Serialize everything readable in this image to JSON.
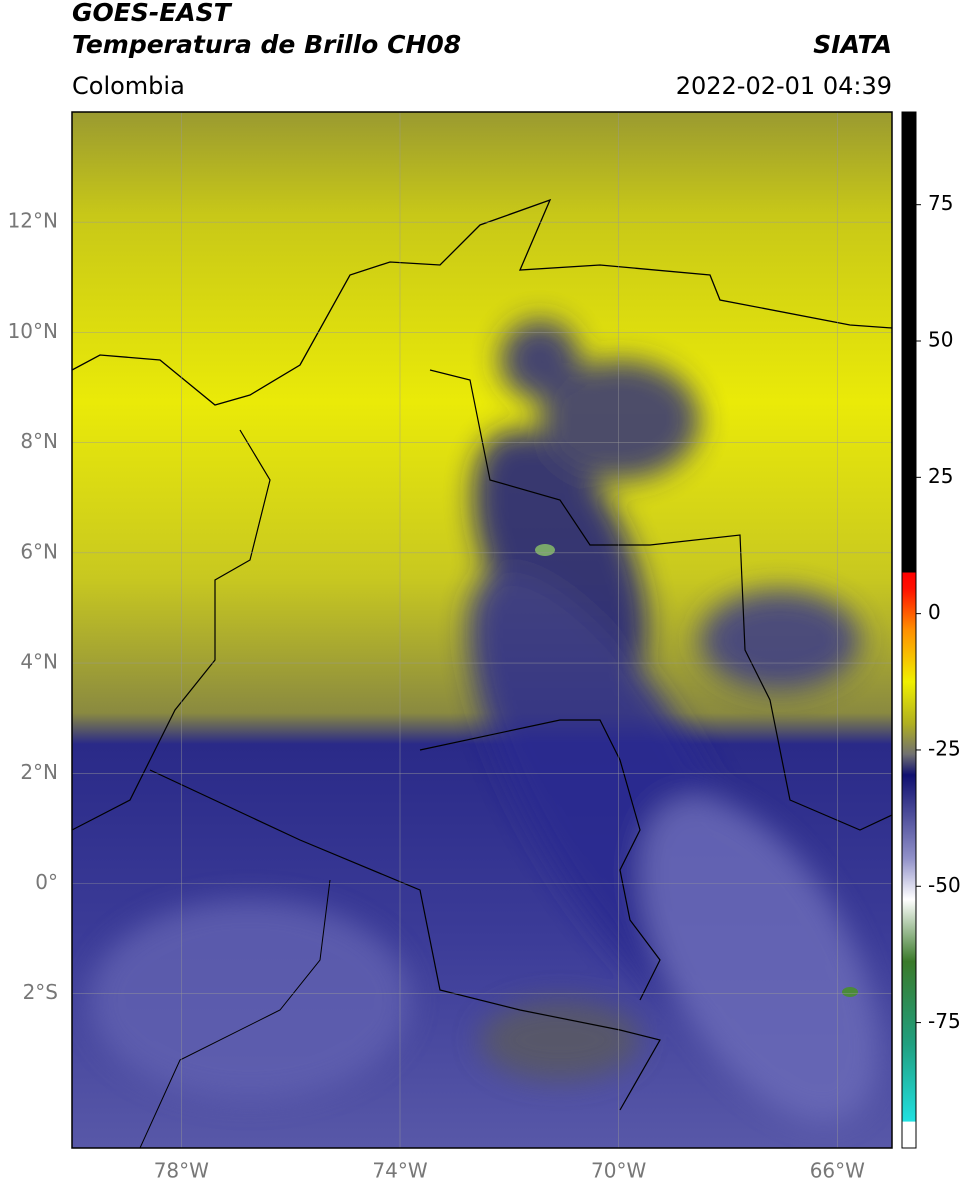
{
  "header": {
    "title": "GOES-EAST",
    "subtitle": "Temperatura de Brillo CH08",
    "source": "SIATA",
    "region": "Colombia",
    "datetime": "2022-02-01 04:39"
  },
  "map": {
    "lon_range": [
      -80,
      -65
    ],
    "lat_range": [
      -4.8,
      14
    ],
    "lat_ticks": [
      {
        "value": 12,
        "label": "12°N"
      },
      {
        "value": 10,
        "label": "10°N"
      },
      {
        "value": 8,
        "label": "8°N"
      },
      {
        "value": 6,
        "label": "6°N"
      },
      {
        "value": 4,
        "label": "4°N"
      },
      {
        "value": 2,
        "label": "2°N"
      },
      {
        "value": 0,
        "label": "0°"
      },
      {
        "value": -2,
        "label": "2°S"
      }
    ],
    "lon_ticks": [
      {
        "value": -78,
        "label": "78°W"
      },
      {
        "value": -74,
        "label": "74°W"
      },
      {
        "value": -70,
        "label": "70°W"
      },
      {
        "value": -66,
        "label": "66°W"
      }
    ]
  },
  "colorbar": {
    "lim": [
      -98,
      92
    ],
    "ticks": [
      75,
      50,
      25,
      0,
      -25,
      -50,
      -75
    ]
  }
}
